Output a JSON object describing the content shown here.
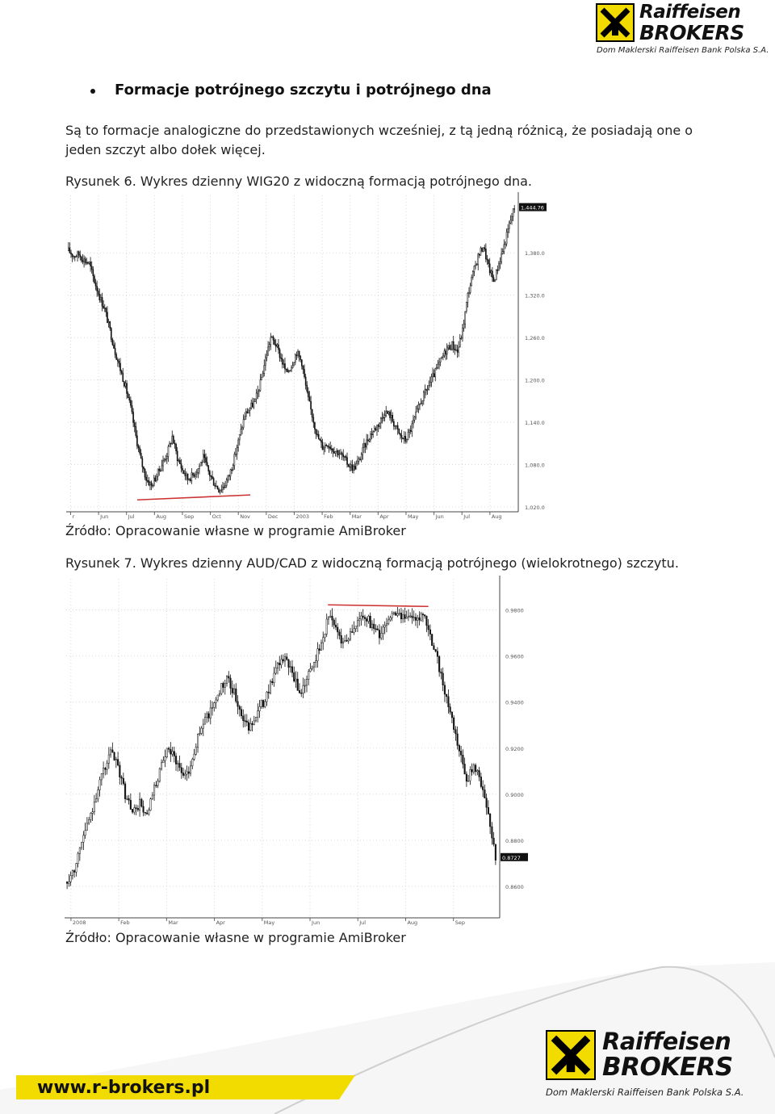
{
  "header": {
    "logo": {
      "name": "Raiffeisen",
      "brokers": "BROKERS",
      "subtitle": "Dom Maklerski Raiffeisen Bank Polska S.A."
    }
  },
  "section": {
    "heading": "Formacje potrójnego szczytu i potrójnego dna",
    "paragraph": "Są to formacje analogiczne do przedstawionych wcześniej, z tą jedną różnicą, że posiadają one o jeden szczyt albo dołek więcej."
  },
  "figure1": {
    "caption": "Rysunek 6. Wykres dzienny WIG20 z widoczną formacją potrójnego dna.",
    "source": "Źródło: Opracowanie własne w programie AmiBroker"
  },
  "figure2": {
    "caption": "Rysunek 7. Wykres dzienny AUD/CAD z widoczną formacją potrójnego (wielokrotnego) szczytu.",
    "source": "Źródło: Opracowanie własne w programie AmiBroker"
  },
  "footer": {
    "url": "www.r-brokers.pl",
    "logo": {
      "name": "Raiffeisen",
      "brokers": "BROKERS",
      "subtitle": "Dom Maklerski Raiffeisen Bank Polska S.A."
    }
  },
  "chart_data": [
    {
      "type": "candlestick",
      "series_name": "WIG20",
      "x_tick_labels": [
        "r",
        "Jun",
        "Jul",
        "Aug",
        "Sep",
        "Oct",
        "Nov",
        "Dec",
        "2003",
        "Feb",
        "Mar",
        "Apr",
        "May",
        "Jun",
        "Jul",
        "Aug"
      ],
      "y_tick_labels": [
        "1,020.0",
        "1,080.0",
        "1,140.0",
        "1,200.0",
        "1,260.0",
        "1,320.0",
        "1,380.0"
      ],
      "y_ticks": [
        1020,
        1080,
        1140,
        1200,
        1260,
        1320,
        1380
      ],
      "ylim": [
        1020,
        1450
      ],
      "last_price_label": "1,444.76",
      "last_price": 1444.76,
      "close_series": [
        1383,
        1376,
        1378,
        1370,
        1365,
        1340,
        1318,
        1300,
        1270,
        1240,
        1215,
        1190,
        1160,
        1120,
        1085,
        1060,
        1050,
        1065,
        1080,
        1095,
        1120,
        1090,
        1072,
        1060,
        1065,
        1075,
        1090,
        1070,
        1055,
        1045,
        1050,
        1065,
        1090,
        1120,
        1150,
        1160,
        1170,
        1195,
        1230,
        1260,
        1250,
        1230,
        1210,
        1220,
        1240,
        1225,
        1180,
        1150,
        1120,
        1105,
        1110,
        1102,
        1098,
        1090,
        1080,
        1075,
        1085,
        1105,
        1120,
        1130,
        1140,
        1155,
        1150,
        1135,
        1120,
        1115,
        1130,
        1150,
        1170,
        1185,
        1200,
        1215,
        1230,
        1245,
        1250,
        1240,
        1270,
        1320,
        1350,
        1375,
        1390,
        1360,
        1340,
        1365,
        1390,
        1420,
        1444.76
      ],
      "annotation": {
        "type": "support-line",
        "color": "#cc3333",
        "from": {
          "index": 13,
          "value": 1030
        },
        "to": {
          "index": 35,
          "value": 1037
        }
      }
    },
    {
      "type": "candlestick",
      "series_name": "AUD/CAD",
      "x_tick_labels": [
        "2008",
        "Feb",
        "Mar",
        "Apr",
        "May",
        "Jun",
        "Jul",
        "Aug",
        "Sep"
      ],
      "y_tick_labels": [
        "0.8600",
        "0.8800",
        "0.9000",
        "0.9200",
        "0.9400",
        "0.9600",
        "0.9800"
      ],
      "y_ticks": [
        0.86,
        0.88,
        0.9,
        0.92,
        0.94,
        0.96,
        0.98
      ],
      "ylim": [
        0.853,
        0.99
      ],
      "last_price_label": "0.8727",
      "last_price": 0.8727,
      "close_series": [
        0.862,
        0.868,
        0.88,
        0.888,
        0.9,
        0.91,
        0.918,
        0.912,
        0.9,
        0.892,
        0.896,
        0.89,
        0.902,
        0.912,
        0.92,
        0.915,
        0.908,
        0.912,
        0.925,
        0.932,
        0.938,
        0.945,
        0.95,
        0.944,
        0.935,
        0.928,
        0.935,
        0.94,
        0.948,
        0.955,
        0.96,
        0.952,
        0.944,
        0.95,
        0.958,
        0.965,
        0.978,
        0.972,
        0.966,
        0.97,
        0.975,
        0.978,
        0.973,
        0.969,
        0.975,
        0.979,
        0.976,
        0.979,
        0.974,
        0.978,
        0.969,
        0.958,
        0.945,
        0.932,
        0.918,
        0.906,
        0.912,
        0.905,
        0.892,
        0.8727
      ],
      "annotation": {
        "type": "resistance-line",
        "color": "#cc3333",
        "from": {
          "index": 36,
          "value": 0.9822
        },
        "to": {
          "index": 50,
          "value": 0.9815
        }
      }
    }
  ]
}
